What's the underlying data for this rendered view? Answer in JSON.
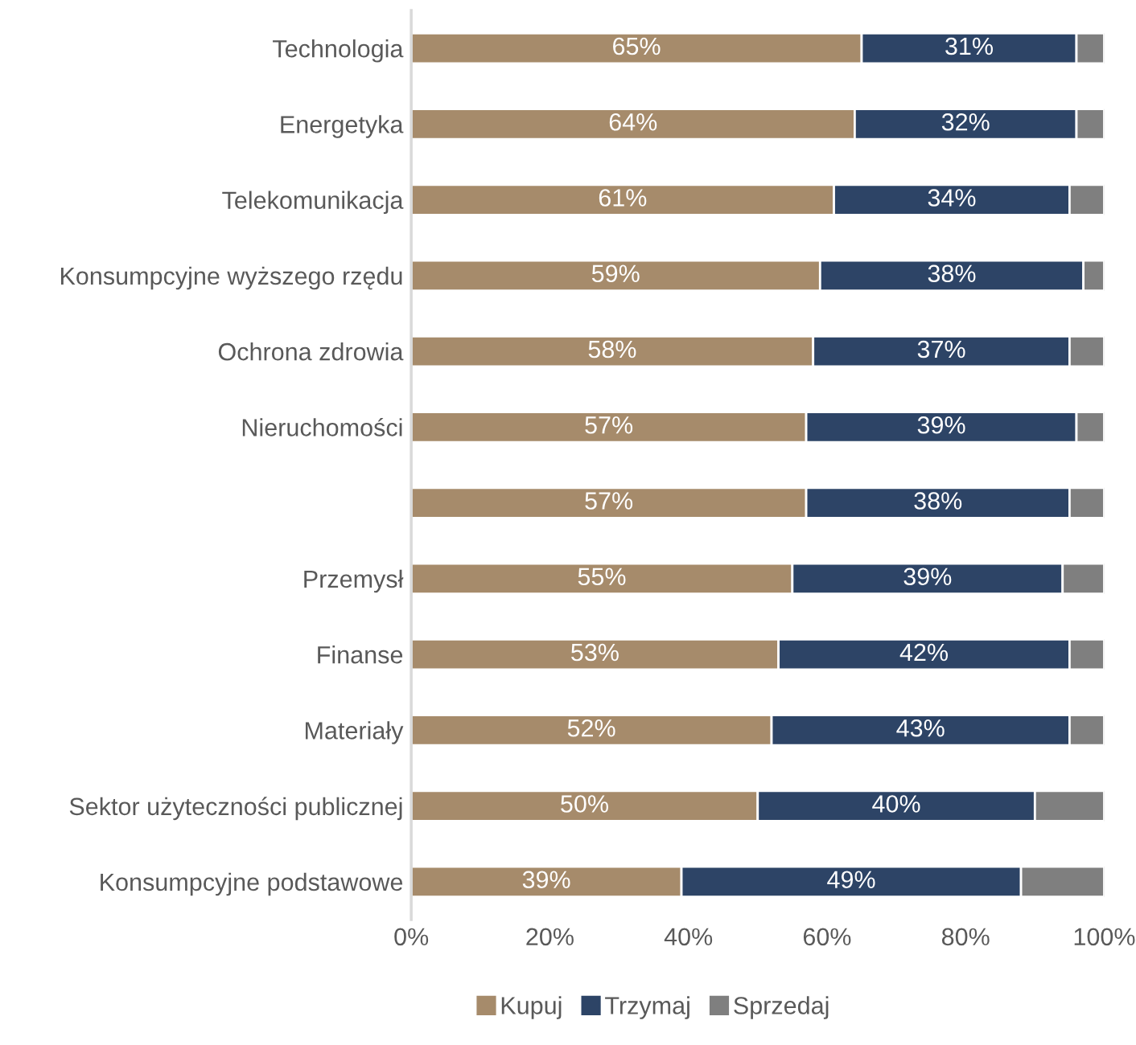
{
  "chart_data": {
    "type": "bar",
    "orientation": "horizontal",
    "stacked": true,
    "categories": [
      "Technologia",
      "Energetyka",
      "Telekomunikacja",
      "Konsumpcyjne wyższego rzędu",
      "Ochrona zdrowia",
      "Nieruchomości",
      null,
      "Przemysł",
      "Finanse",
      "Materiały",
      "Sektor użyteczności publicznej",
      "Konsumpcyjne podstawowe"
    ],
    "series": [
      {
        "name": "Kupuj",
        "color": "#a68b6b",
        "values": [
          65,
          64,
          61,
          59,
          58,
          57,
          57,
          55,
          53,
          52,
          50,
          39
        ],
        "value_labels": [
          "65%",
          "64%",
          "61%",
          "59%",
          "58%",
          "57%",
          "57%",
          "55%",
          "53%",
          "52%",
          "50%",
          "39%"
        ]
      },
      {
        "name": "Trzymaj",
        "color": "#2d4466",
        "values": [
          31,
          32,
          34,
          38,
          37,
          39,
          38,
          39,
          42,
          43,
          40,
          49
        ],
        "value_labels": [
          "31%",
          "32%",
          "34%",
          "38%",
          "37%",
          "39%",
          "38%",
          "39%",
          "42%",
          "43%",
          "40%",
          "49%"
        ]
      },
      {
        "name": "Sprzedaj",
        "color": "#7f7f7f",
        "values": [
          4,
          4,
          5,
          3,
          5,
          4,
          5,
          6,
          5,
          5,
          10,
          12
        ]
      }
    ],
    "xlim": [
      0,
      100
    ],
    "xticks": [
      {
        "value": 0,
        "label": "0%"
      },
      {
        "value": 20,
        "label": "20%"
      },
      {
        "value": 40,
        "label": "40%"
      },
      {
        "value": 60,
        "label": "60%"
      },
      {
        "value": 80,
        "label": "80%"
      },
      {
        "value": 100,
        "label": "100%"
      }
    ],
    "grid": false,
    "legend": "bottom"
  }
}
